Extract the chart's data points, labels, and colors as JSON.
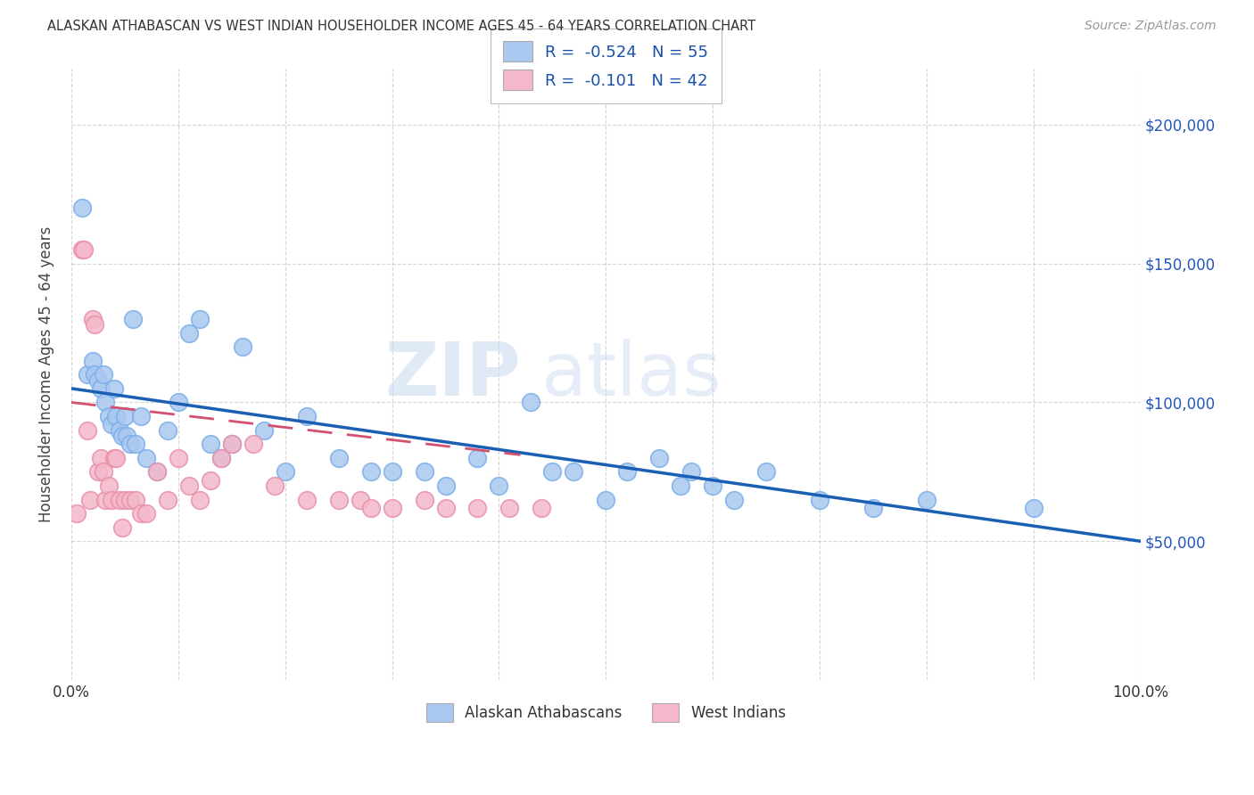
{
  "title": "ALASKAN ATHABASCAN VS WEST INDIAN HOUSEHOLDER INCOME AGES 45 - 64 YEARS CORRELATION CHART",
  "source": "Source: ZipAtlas.com",
  "ylabel": "Householder Income Ages 45 - 64 years",
  "ylabel_right_ticks": [
    "$200,000",
    "$150,000",
    "$100,000",
    "$50,000"
  ],
  "ylabel_right_values": [
    200000,
    150000,
    100000,
    50000
  ],
  "legend_label1": "Alaskan Athabascans",
  "legend_label2": "West Indians",
  "r1": -0.524,
  "n1": 55,
  "r2": -0.101,
  "n2": 42,
  "color_blue": "#aac8f0",
  "color_pink": "#f4b8ca",
  "color_blue_line": "#1a5fb4",
  "color_pink_line": "#d45070",
  "watermark_zip": "ZIP",
  "watermark_atlas": "atlas",
  "blue_scatter_x": [
    1.0,
    1.5,
    2.0,
    2.2,
    2.5,
    2.8,
    3.0,
    3.2,
    3.5,
    3.8,
    4.0,
    4.2,
    4.5,
    4.8,
    5.0,
    5.2,
    5.5,
    5.8,
    6.0,
    6.5,
    7.0,
    8.0,
    9.0,
    10.0,
    11.0,
    12.0,
    13.0,
    14.0,
    15.0,
    16.0,
    18.0,
    20.0,
    22.0,
    25.0,
    28.0,
    30.0,
    33.0,
    35.0,
    38.0,
    40.0,
    43.0,
    45.0,
    47.0,
    50.0,
    52.0,
    55.0,
    57.0,
    58.0,
    60.0,
    62.0,
    65.0,
    70.0,
    75.0,
    80.0,
    90.0
  ],
  "blue_scatter_y": [
    170000,
    110000,
    115000,
    110000,
    108000,
    105000,
    110000,
    100000,
    95000,
    92000,
    105000,
    95000,
    90000,
    88000,
    95000,
    88000,
    85000,
    130000,
    85000,
    95000,
    80000,
    75000,
    90000,
    100000,
    125000,
    130000,
    85000,
    80000,
    85000,
    120000,
    90000,
    75000,
    95000,
    80000,
    75000,
    75000,
    75000,
    70000,
    80000,
    70000,
    100000,
    75000,
    75000,
    65000,
    75000,
    80000,
    70000,
    75000,
    70000,
    65000,
    75000,
    65000,
    62000,
    65000,
    62000
  ],
  "pink_scatter_x": [
    0.5,
    1.0,
    1.2,
    1.5,
    1.8,
    2.0,
    2.2,
    2.5,
    2.8,
    3.0,
    3.2,
    3.5,
    3.8,
    4.0,
    4.2,
    4.5,
    4.8,
    5.0,
    5.5,
    6.0,
    6.5,
    7.0,
    8.0,
    9.0,
    10.0,
    11.0,
    12.0,
    13.0,
    14.0,
    15.0,
    17.0,
    19.0,
    22.0,
    25.0,
    27.0,
    28.0,
    30.0,
    33.0,
    35.0,
    38.0,
    41.0,
    44.0
  ],
  "pink_scatter_y": [
    60000,
    155000,
    155000,
    90000,
    65000,
    130000,
    128000,
    75000,
    80000,
    75000,
    65000,
    70000,
    65000,
    80000,
    80000,
    65000,
    55000,
    65000,
    65000,
    65000,
    60000,
    60000,
    75000,
    65000,
    80000,
    70000,
    65000,
    72000,
    80000,
    85000,
    85000,
    70000,
    65000,
    65000,
    65000,
    62000,
    62000,
    65000,
    62000,
    62000,
    62000,
    62000
  ],
  "xlim": [
    0,
    100
  ],
  "ylim": [
    0,
    220000
  ],
  "xticks": [
    0,
    10,
    20,
    30,
    40,
    50,
    60,
    70,
    80,
    90,
    100
  ]
}
